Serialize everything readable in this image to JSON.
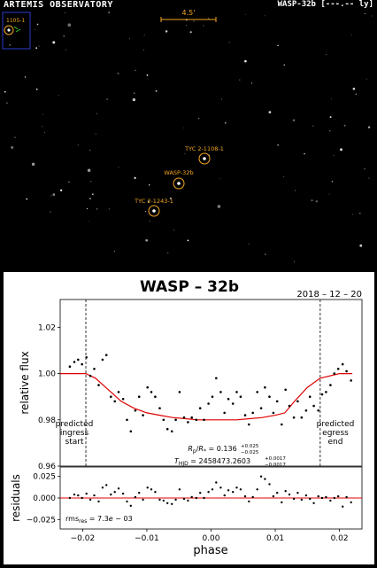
{
  "header": {
    "observatory": "ARTEMIS OBSERVATORY",
    "target": "WASP-32b [---.-- ly]"
  },
  "finder": {
    "scale_label": "4.5'",
    "inset_label": "1105-1",
    "stars": [
      {
        "label": "TYC 2-1108-1",
        "color": "#f5a623"
      },
      {
        "label": "WASP-32b",
        "color": "#f5a623"
      },
      {
        "label": "TYC 2-1243-1",
        "color": "#f5a623"
      }
    ]
  },
  "plot": {
    "title": "WASP – 32b",
    "date": "2018 – 12 – 20",
    "ylabel": "relative flux",
    "ylabel_resid": "residuals",
    "xlabel": "phase",
    "ingress_label": [
      "predicted",
      "ingress",
      "start"
    ],
    "egress_label": [
      "predicted",
      "egress",
      "end"
    ],
    "rp_text": "Rp/R* = 0.136 +0.025 −0.025",
    "t_text": "THJD = 2458473.2603 +0.0017 −0.0017",
    "rms_text": "rmsres = 7.3e − 03",
    "model_color": "#e00000"
  },
  "chart_data": [
    {
      "type": "scatter",
      "title": "WASP – 32b",
      "xlabel": "",
      "ylabel": "relative flux",
      "xlim": [
        -0.0235,
        0.0235
      ],
      "ylim": [
        0.96,
        1.032
      ],
      "yticks": [
        0.96,
        0.98,
        1.0,
        1.02
      ],
      "ytick_labels": [
        "0.96",
        "0.98",
        "1.00",
        "1.02"
      ],
      "ingress_phase": -0.0195,
      "egress_phase": 0.017,
      "x": [
        -0.022,
        -0.0213,
        -0.0207,
        -0.0201,
        -0.0194,
        -0.0188,
        -0.0182,
        -0.0175,
        -0.0169,
        -0.0163,
        -0.0156,
        -0.015,
        -0.0144,
        -0.0137,
        -0.0131,
        -0.0125,
        -0.0118,
        -0.0112,
        -0.0106,
        -0.0099,
        -0.0093,
        -0.0087,
        -0.008,
        -0.0074,
        -0.0068,
        -0.0061,
        -0.0055,
        -0.0049,
        -0.0042,
        -0.0036,
        -0.003,
        -0.0023,
        -0.0017,
        -0.0011,
        -0.0004,
        0.0002,
        0.0008,
        0.0015,
        0.0021,
        0.0027,
        0.0034,
        0.004,
        0.0046,
        0.0053,
        0.0059,
        0.0065,
        0.0072,
        0.0078,
        0.0084,
        0.0091,
        0.0097,
        0.0103,
        0.011,
        0.0116,
        0.0122,
        0.0129,
        0.0135,
        0.0141,
        0.0148,
        0.0154,
        0.016,
        0.0167,
        0.0173,
        0.0179,
        0.0186,
        0.0192,
        0.0198,
        0.0205,
        0.0211,
        0.0218
      ],
      "y": [
        1.003,
        1.005,
        1.006,
        1.004,
        1.007,
        0.999,
        1.002,
        0.995,
        1.006,
        1.008,
        0.99,
        0.988,
        0.992,
        0.989,
        0.98,
        0.975,
        0.984,
        0.99,
        0.982,
        0.994,
        0.992,
        0.99,
        0.985,
        0.98,
        0.976,
        0.975,
        0.98,
        0.992,
        0.981,
        0.979,
        0.981,
        0.98,
        0.985,
        0.98,
        0.987,
        0.99,
        0.998,
        0.992,
        0.983,
        0.989,
        0.987,
        0.992,
        0.99,
        0.982,
        0.978,
        0.983,
        0.992,
        0.985,
        0.994,
        0.99,
        0.983,
        0.988,
        0.978,
        0.993,
        0.986,
        0.981,
        0.988,
        0.981,
        0.984,
        0.99,
        0.986,
        0.984,
        0.991,
        0.992,
        0.995,
        1.0,
        1.002,
        1.004,
        1.001,
        0.997
      ],
      "model_x": [
        -0.0235,
        -0.0195,
        -0.018,
        -0.016,
        -0.014,
        -0.012,
        -0.01,
        -0.008,
        -0.006,
        -0.004,
        -0.002,
        0.0,
        0.002,
        0.004,
        0.006,
        0.008,
        0.01,
        0.0115,
        0.013,
        0.015,
        0.017,
        0.02,
        0.022
      ],
      "model_y": [
        1.0,
        1.0,
        0.998,
        0.993,
        0.988,
        0.985,
        0.983,
        0.982,
        0.981,
        0.9805,
        0.98,
        0.98,
        0.98,
        0.98,
        0.9805,
        0.981,
        0.982,
        0.983,
        0.988,
        0.994,
        0.998,
        1.0,
        1.0
      ]
    },
    {
      "type": "scatter",
      "title": "",
      "xlabel": "phase",
      "ylabel": "residuals",
      "xlim": [
        -0.0235,
        0.0235
      ],
      "ylim": [
        -0.036,
        0.036
      ],
      "yticks": [
        0.025,
        0.0,
        -0.025
      ],
      "ytick_labels": [
        "0.025",
        "0.000",
        "−0.025"
      ],
      "xticks": [
        -0.02,
        -0.01,
        0.0,
        0.01,
        0.02
      ],
      "xtick_labels": [
        "−0.02",
        "−0.01",
        "0.00",
        "0.01",
        "0.02"
      ],
      "x": [
        -0.022,
        -0.0213,
        -0.0207,
        -0.0201,
        -0.0194,
        -0.0188,
        -0.0182,
        -0.0175,
        -0.0169,
        -0.0163,
        -0.0156,
        -0.015,
        -0.0144,
        -0.0137,
        -0.0131,
        -0.0125,
        -0.0118,
        -0.0112,
        -0.0106,
        -0.0099,
        -0.0093,
        -0.0087,
        -0.008,
        -0.0074,
        -0.0068,
        -0.0061,
        -0.0055,
        -0.0049,
        -0.0042,
        -0.0036,
        -0.003,
        -0.0023,
        -0.0017,
        -0.0011,
        -0.0004,
        0.0002,
        0.0008,
        0.0015,
        0.0021,
        0.0027,
        0.0034,
        0.004,
        0.0046,
        0.0053,
        0.0059,
        0.0065,
        0.0072,
        0.0078,
        0.0084,
        0.0091,
        0.0097,
        0.0103,
        0.011,
        0.0116,
        0.0122,
        0.0129,
        0.0135,
        0.0141,
        0.0148,
        0.0154,
        0.016,
        0.0167,
        0.0173,
        0.0179,
        0.0186,
        0.0192,
        0.0198,
        0.0205,
        0.0211,
        0.0218
      ],
      "y": [
        0.0,
        0.004,
        0.003,
        0.0,
        0.005,
        -0.002,
        0.003,
        -0.004,
        0.012,
        0.015,
        0.004,
        0.007,
        0.011,
        0.005,
        -0.004,
        -0.009,
        0.001,
        0.006,
        -0.002,
        0.012,
        0.01,
        0.007,
        -0.002,
        -0.003,
        -0.006,
        -0.007,
        -0.002,
        0.01,
        -0.001,
        -0.003,
        0.001,
        0.0,
        0.006,
        0.0,
        0.007,
        0.01,
        0.018,
        0.012,
        0.003,
        0.009,
        0.007,
        0.012,
        0.01,
        0.002,
        -0.004,
        0.001,
        0.01,
        0.025,
        0.022,
        0.016,
        0.002,
        0.006,
        -0.005,
        0.008,
        0.004,
        -0.001,
        0.006,
        -0.002,
        0.003,
        -0.001,
        -0.006,
        0.002,
        0.0,
        0.001,
        -0.003,
        0.0,
        0.002,
        -0.01,
        0.001,
        -0.005
      ]
    }
  ]
}
